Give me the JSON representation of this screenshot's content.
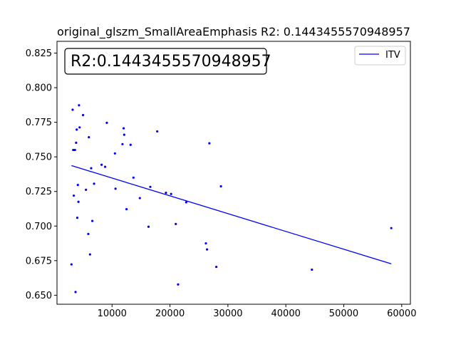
{
  "chart_data": {
    "type": "scatter",
    "title": "original_glszm_SmallAreaEmphasis R2: 0.1443455570948957",
    "annotation": "R2:0.1443455570948957",
    "xlim": [
      500,
      61500
    ],
    "ylim": [
      0.6435,
      0.8335
    ],
    "x_ticks": [
      10000,
      20000,
      30000,
      40000,
      50000,
      60000
    ],
    "y_ticks": [
      0.65,
      0.675,
      0.7,
      0.725,
      0.75,
      0.775,
      0.8,
      0.825
    ],
    "grid": false,
    "legend_position": "top-right",
    "point_color": "#0000ff",
    "series": [
      {
        "name": "ITV",
        "kind": "line",
        "color": "#0000ff",
        "x": [
          3000,
          58200
        ],
        "y": [
          0.7437,
          0.6727
        ]
      },
      {
        "kind": "scatter",
        "color": "#0000ff",
        "x": [
          3000,
          3200,
          3300,
          3400,
          3600,
          3700,
          3800,
          3900,
          4000,
          4100,
          4200,
          4300,
          4400,
          5000,
          5500,
          5900,
          6000,
          6200,
          6400,
          6600,
          6900,
          8200,
          8800,
          9100,
          10500,
          10600,
          11800,
          12000,
          12100,
          12500,
          13200,
          13700,
          14800,
          16300,
          16600,
          17800,
          19300,
          20200,
          21000,
          21400,
          22800,
          26200,
          26400,
          26800,
          28000,
          28800,
          44500,
          58200
        ],
        "y": [
          0.6723,
          0.7841,
          0.755,
          0.722,
          0.755,
          0.6523,
          0.7602,
          0.7697,
          0.706,
          0.7297,
          0.7175,
          0.7873,
          0.7713,
          0.7802,
          0.7262,
          0.6943,
          0.7642,
          0.6795,
          0.7418,
          0.7037,
          0.7306,
          0.7443,
          0.7428,
          0.7746,
          0.7525,
          0.727,
          0.7592,
          0.7706,
          0.766,
          0.7122,
          0.7587,
          0.735,
          0.7202,
          0.6995,
          0.7283,
          0.7684,
          0.724,
          0.7232,
          0.7015,
          0.6578,
          0.7172,
          0.6875,
          0.6831,
          0.7598,
          0.6705,
          0.7287,
          0.6685,
          0.6985
        ]
      }
    ]
  }
}
